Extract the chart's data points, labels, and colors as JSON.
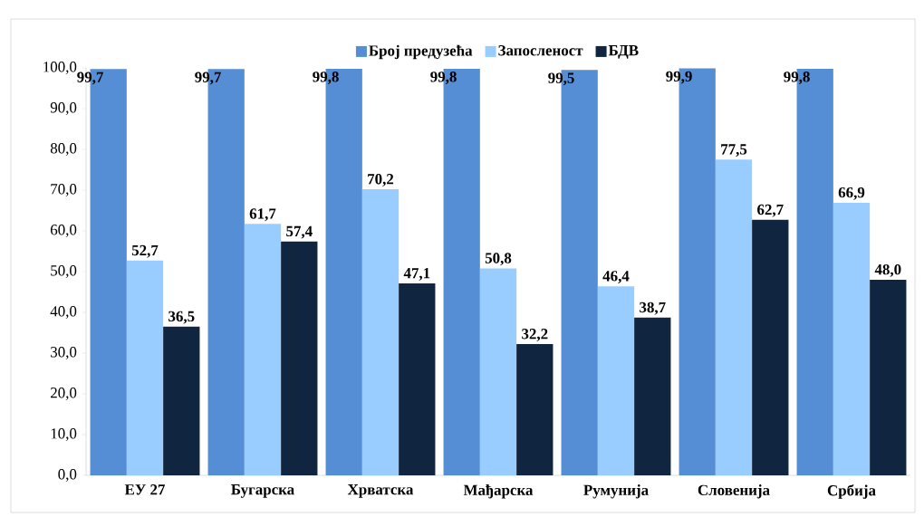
{
  "chart_data": {
    "type": "bar",
    "categories": [
      "ЕУ 27",
      "Бугарска",
      "Хрватска",
      "Мађарска",
      "Румунија",
      "Словенија",
      "Србија"
    ],
    "series": [
      {
        "name": "Број предузећа",
        "color": "#558ed5",
        "values": [
          99.7,
          99.7,
          99.8,
          99.8,
          99.5,
          99.9,
          99.8
        ],
        "value_labels": [
          "99,7",
          "99,7",
          "99,8",
          "99,8",
          "99,5",
          "99,9",
          "99,8"
        ]
      },
      {
        "name": "Запосленост",
        "color": "#99ccff",
        "values": [
          52.7,
          61.7,
          70.2,
          50.8,
          46.4,
          77.5,
          66.9
        ],
        "value_labels": [
          "52,7",
          "61,7",
          "70,2",
          "50,8",
          "46,4",
          "77,5",
          "66,9"
        ]
      },
      {
        "name": "БДВ",
        "color": "#10253f",
        "values": [
          36.5,
          57.4,
          47.1,
          32.2,
          38.7,
          62.7,
          48.0
        ],
        "value_labels": [
          "36,5",
          "57,4",
          "47,1",
          "32,2",
          "38,7",
          "62,7",
          "48,0"
        ]
      }
    ],
    "ylim": [
      0,
      100
    ],
    "yticks": [
      {
        "value": 0,
        "label": "0,0"
      },
      {
        "value": 10,
        "label": "10,0"
      },
      {
        "value": 20,
        "label": "20,0"
      },
      {
        "value": 30,
        "label": "30,0"
      },
      {
        "value": 40,
        "label": "40,0"
      },
      {
        "value": 50,
        "label": "50,0"
      },
      {
        "value": 60,
        "label": "60,0"
      },
      {
        "value": 70,
        "label": "70,0"
      },
      {
        "value": 80,
        "label": "80,0"
      },
      {
        "value": 90,
        "label": "90,0"
      },
      {
        "value": 100,
        "label": "100,0"
      }
    ],
    "legend": "top"
  }
}
